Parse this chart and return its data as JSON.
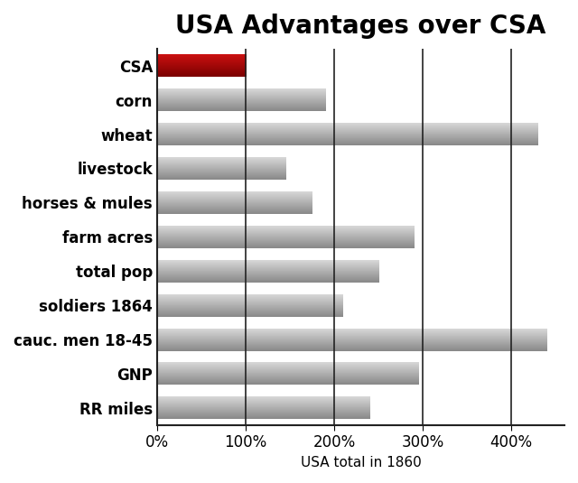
{
  "title": "USA Advantages over CSA",
  "xlabel": "USA total in 1860",
  "categories": [
    "RR miles",
    "GNP",
    "cauc. men 18-45",
    "soldiers 1864",
    "total pop",
    "farm acres",
    "horses & mules",
    "livestock",
    "wheat",
    "corn",
    "CSA"
  ],
  "values": [
    240,
    295,
    440,
    210,
    250,
    290,
    175,
    145,
    430,
    190,
    100
  ],
  "bar_colors": [
    "gray",
    "gray",
    "gray",
    "gray",
    "gray",
    "gray",
    "gray",
    "gray",
    "gray",
    "gray",
    "red"
  ],
  "xticks": [
    0,
    100,
    200,
    300,
    400
  ],
  "xticklabels": [
    "0%",
    "100%",
    "200%",
    "300%",
    "400%"
  ],
  "xlim": [
    0,
    460
  ],
  "title_fontsize": 20,
  "label_fontsize": 12,
  "tick_fontsize": 12,
  "xlabel_fontsize": 11,
  "gray_light": "#d8d8d8",
  "gray_dark": "#888888",
  "red_light": "#cc1111",
  "red_dark": "#7a0000",
  "background_color": "#ffffff",
  "grid_color": "#222222",
  "grid_linewidth": 1.2,
  "bar_height": 0.65
}
